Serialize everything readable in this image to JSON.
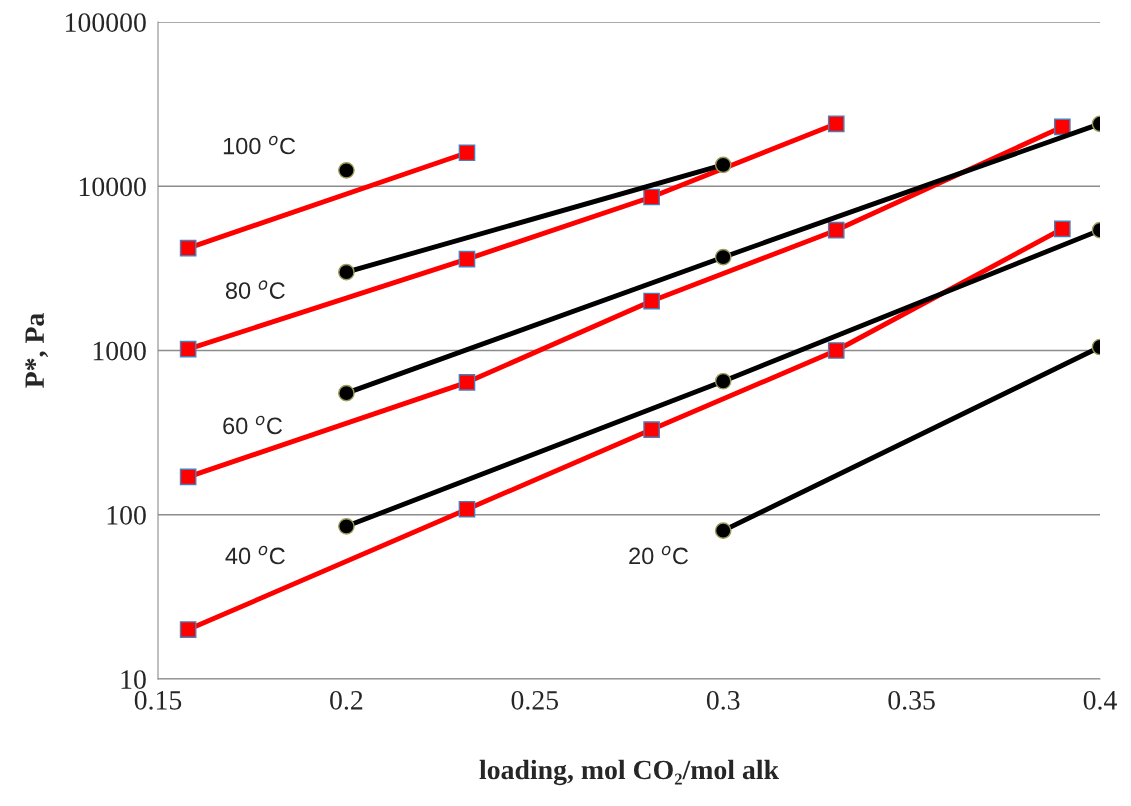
{
  "chart_data": {
    "type": "line",
    "xlabel": "loading, mol CO₂/mol alk",
    "ylabel": "P*, Pa",
    "log": "y",
    "grid": "y",
    "legend": false,
    "xlim": [
      0.15,
      0.4
    ],
    "xticks": [
      0.15,
      0.2,
      0.25,
      0.3,
      0.35,
      0.4
    ],
    "ylim": [
      10,
      100000
    ],
    "yticks": [
      10,
      100,
      1000,
      10000,
      100000
    ],
    "series": [
      {
        "color": "#ff0000",
        "marker": "square",
        "x": [
          0.158,
          0.232
        ],
        "values": [
          4200,
          16000
        ]
      },
      {
        "color": "#ff0000",
        "marker": "square",
        "x": [
          0.158,
          0.232,
          0.281,
          0.33
        ],
        "values": [
          1020,
          3600,
          8600,
          24000
        ]
      },
      {
        "color": "#ff0000",
        "marker": "square",
        "x": [
          0.158,
          0.232,
          0.281,
          0.33,
          0.39
        ],
        "values": [
          170,
          640,
          2000,
          5400,
          23000
        ]
      },
      {
        "color": "#ff0000",
        "marker": "square",
        "x": [
          0.158,
          0.232,
          0.281,
          0.33,
          0.39
        ],
        "values": [
          20,
          108,
          330,
          1000,
          5500
        ]
      },
      {
        "color": "#000000",
        "marker": "circle",
        "x": [
          0.2
        ],
        "values": [
          12500
        ]
      },
      {
        "color": "#000000",
        "marker": "circle",
        "x": [
          0.2,
          0.3
        ],
        "values": [
          3000,
          13500
        ]
      },
      {
        "color": "#000000",
        "marker": "circle",
        "x": [
          0.2,
          0.3,
          0.4
        ],
        "values": [
          550,
          3700,
          24000
        ]
      },
      {
        "color": "#000000",
        "marker": "circle",
        "x": [
          0.2,
          0.3,
          0.4
        ],
        "values": [
          85,
          650,
          5400
        ]
      },
      {
        "color": "#000000",
        "marker": "circle",
        "x": [
          0.3,
          0.4
        ],
        "values": [
          80,
          1050
        ]
      }
    ],
    "annotations": [
      "100 $^{o}$C",
      "80 $^{o}$C",
      "60 $^{o}$C",
      "40 $^{o}$C",
      "20 $^{o}$C"
    ]
  }
}
